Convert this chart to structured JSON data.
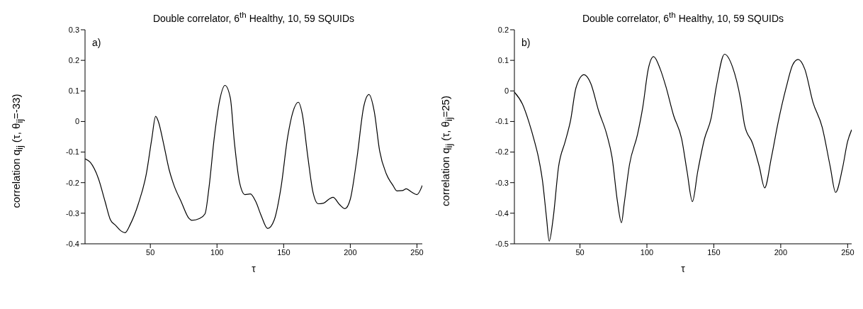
{
  "chart_data": [
    {
      "type": "line",
      "title": "Double correlator, 6$^{th}$ Healthy, 10, 59 SQUIDs",
      "xlabel": "τ",
      "ylabel": "correlation q$_{ij}$ (τ, θ$_{ij}$=-33)",
      "annotations": [
        "a)"
      ],
      "xlim": [
        1,
        254
      ],
      "ylim": [
        -0.4,
        0.3
      ],
      "xticks": [
        50,
        100,
        150,
        200,
        250
      ],
      "yticks": [
        -0.4,
        -0.3,
        -0.2,
        -0.1,
        0,
        0.1,
        0.2,
        0.3
      ],
      "line_style": "solid",
      "x": [
        1,
        5,
        11,
        16,
        20,
        24,
        28,
        31,
        35,
        41,
        47,
        51,
        54,
        56,
        60,
        64,
        68,
        73,
        79,
        81,
        87,
        91,
        94,
        98,
        102,
        106,
        110,
        113,
        117,
        121,
        125,
        129,
        133,
        138,
        143,
        148,
        153,
        157,
        161,
        164,
        168,
        172,
        176,
        180,
        184,
        187,
        192,
        196,
        200,
        205,
        210,
        214,
        218,
        222,
        227,
        232,
        235,
        239,
        242,
        246,
        250,
        254
      ],
      "series": [
        {
          "color": "#000000",
          "values": [
            -0.122,
            -0.134,
            -0.186,
            -0.261,
            -0.321,
            -0.34,
            -0.358,
            -0.364,
            -0.336,
            -0.269,
            -0.171,
            -0.059,
            0.017,
            0.0,
            -0.074,
            -0.156,
            -0.212,
            -0.261,
            -0.317,
            -0.323,
            -0.317,
            -0.302,
            -0.216,
            -0.051,
            0.069,
            0.118,
            0.077,
            -0.066,
            -0.201,
            -0.239,
            -0.237,
            -0.261,
            -0.306,
            -0.35,
            -0.321,
            -0.216,
            -0.051,
            0.032,
            0.063,
            0.024,
            -0.111,
            -0.231,
            -0.269,
            -0.267,
            -0.254,
            -0.248,
            -0.272,
            -0.285,
            -0.254,
            -0.119,
            0.047,
            0.088,
            0.032,
            -0.096,
            -0.171,
            -0.209,
            -0.227,
            -0.226,
            -0.22,
            -0.231,
            -0.239,
            -0.209
          ]
        }
      ]
    },
    {
      "type": "line",
      "title": "Double correlator, 6$^{th}$ Healthy, 10, 59 SQUIDs",
      "xlabel": "τ",
      "ylabel": "correlation q$_{ij}$ (τ, θ$_{ij}$=25)",
      "annotations": [
        "b)"
      ],
      "xlim": [
        1,
        253
      ],
      "ylim": [
        -0.5,
        0.2
      ],
      "xticks": [
        50,
        100,
        150,
        200,
        250
      ],
      "yticks": [
        -0.5,
        -0.4,
        -0.3,
        -0.2,
        -0.1,
        0,
        0.1,
        0.2
      ],
      "line_style": "solid",
      "x": [
        1,
        7,
        12,
        16,
        19,
        22,
        25,
        27,
        30,
        34,
        39,
        43,
        47,
        53,
        58,
        64,
        70,
        74,
        78,
        81,
        83,
        87,
        93,
        97,
        101,
        105,
        110,
        114,
        120,
        126,
        130,
        134,
        138,
        143,
        148,
        152,
        158,
        164,
        170,
        173,
        179,
        184,
        188,
        193,
        198,
        204,
        209,
        213,
        218,
        224,
        231,
        237,
        241,
        246,
        250,
        253
      ],
      "series": [
        {
          "color": "#000000",
          "values": [
            -0.004,
            -0.043,
            -0.104,
            -0.165,
            -0.218,
            -0.294,
            -0.415,
            -0.491,
            -0.415,
            -0.248,
            -0.165,
            -0.096,
            0.01,
            0.053,
            0.025,
            -0.066,
            -0.142,
            -0.218,
            -0.362,
            -0.431,
            -0.37,
            -0.241,
            -0.142,
            -0.051,
            0.071,
            0.112,
            0.071,
            0.017,
            -0.081,
            -0.157,
            -0.263,
            -0.362,
            -0.263,
            -0.157,
            -0.089,
            0.017,
            0.12,
            0.078,
            -0.028,
            -0.112,
            -0.172,
            -0.248,
            -0.317,
            -0.218,
            -0.104,
            0.01,
            0.086,
            0.103,
            0.071,
            -0.036,
            -0.119,
            -0.248,
            -0.332,
            -0.256,
            -0.165,
            -0.127
          ]
        }
      ]
    }
  ]
}
